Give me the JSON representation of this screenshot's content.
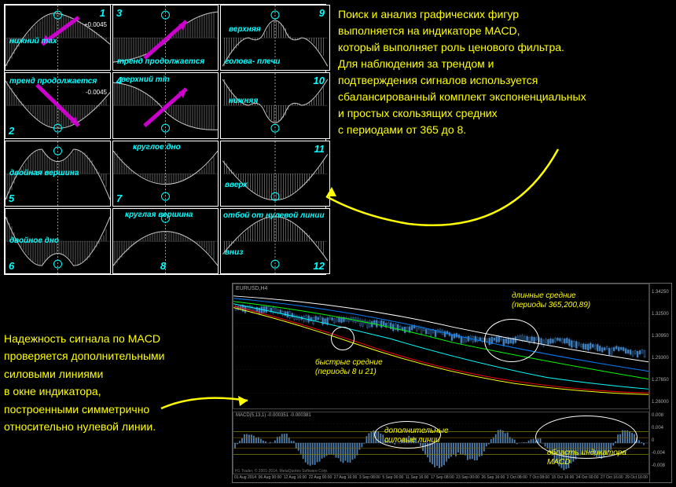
{
  "patterns": [
    {
      "id": 1,
      "num_pos": "top-right",
      "label": "нижний max",
      "label_pos": "left:5px;top:40px",
      "value": "+0.0045",
      "curve": "hill-down",
      "arrow": "down-left",
      "arrow_color": "#cc00cc"
    },
    {
      "id": 3,
      "num_pos": "top-left",
      "label": "тренд продолжается",
      "label_pos": "left:5px;bottom:5px",
      "curve": "hill-up",
      "arrow": "up-right",
      "arrow_color": "#cc00cc"
    },
    {
      "id": 9,
      "num_pos": "top-right",
      "label": "верхняя",
      "label_pos": "left:10px;top:25px",
      "label2": "голова- плечи",
      "label2_pos": "left:5px;bottom:5px",
      "curve": "head-shoulders"
    },
    {
      "id": 2,
      "num_pos": "bottom-left",
      "label": "тренд продолжается",
      "label_pos": "left:5px;top:5px",
      "value": "-0.0045",
      "curve": "valley-up",
      "arrow": "down-right",
      "arrow_color": "#cc00cc"
    },
    {
      "id": 4,
      "num_pos": "top-left",
      "label": "верхний min",
      "label_pos": "left:10px;top:3px",
      "curve": "valley-down",
      "arrow": "up-right",
      "arrow_color": "#cc00cc"
    },
    {
      "id": 10,
      "num_pos": "top-right",
      "label": "нижняя",
      "label_pos": "left:10px;top:30px",
      "curve": "inv-head-shoulders"
    },
    {
      "id": 5,
      "num_pos": "bottom-left",
      "label": "двойная вершина",
      "label_pos": "left:5px;top:35px",
      "curve": "double-top"
    },
    {
      "id": 7,
      "num_pos": "bottom-left",
      "label": "круглое дно",
      "label_pos": "left:25px;top:2px",
      "curve": "round-bottom"
    },
    {
      "id": 11,
      "num_pos": "top-right",
      "label": "вверх",
      "label_pos": "left:5px;top:50px",
      "curve": "up-bounce"
    },
    {
      "id": 6,
      "num_pos": "bottom-left",
      "label": "двойное дно",
      "label_pos": "left:5px;top:35px",
      "curve": "double-bottom"
    },
    {
      "id": 8,
      "num_pos": "bottom-center",
      "label": "круглая вершина",
      "label_pos": "left:15px;top:2px",
      "curve": "round-top"
    },
    {
      "id": 12,
      "num_pos": "bottom-right",
      "label": "вниз",
      "label_pos": "left:5px;top:50px",
      "label2": "отбой от нулевой линии",
      "label2_pos": "left:3px;top:3px",
      "curve": "down-bounce"
    }
  ],
  "desc_top_lines": [
    "Поиск и анализ графических фигур",
    "выполняется на индикаторе MACD,",
    "который выполняет роль ценового фильтра.",
    "Для наблюдения за трендом и",
    "подтверждения сигналов используется",
    "сбалансированный комплект  экспоненциальных",
    "и простых скользящих средних",
    "с периодами от 365 до 8."
  ],
  "desc_bottom_lines": [
    "Надежность сигнала по MACD",
    "проверяется дополнительными",
    "силовыми линиями",
    "в окне индикатора,",
    "построенными симметрично",
    "относительно нулевой линии."
  ],
  "chart": {
    "symbol": "EURUSD,H4",
    "price_levels": [
      "1.34250",
      "1.32500",
      "1.30950",
      "1.29300",
      "1.27650",
      "1.26000"
    ],
    "macd_label": "MACD(5,13,1) -0.000351 -0.000381",
    "macd_levels": [
      "0.008",
      "0.004",
      "0",
      "-0.004",
      "-0.008"
    ],
    "time_labels": [
      "01 Aug 2014",
      "06 Aug 00:00",
      "12 Aug 16:00",
      "22 Aug 00:00",
      "27 Aug 16:00",
      "3 Sep 08:00",
      "5 Sep 00:00",
      "11 Sep 16:00",
      "17 Sep 08:00",
      "23 Sep 00:00",
      "26 Sep 16:00",
      "2 Oct 08:00",
      "7 Oct 08:00",
      "15 Oct 16:00",
      "24 Oct 00:00",
      "27 Oct 16:00",
      "29 Oct 16:00"
    ],
    "copyright": "H1 Trader, © 2001-2014, MetaQuotes Software Corp.",
    "ma_colors": {
      "fast1": "#ffff00",
      "fast2": "#ff0000",
      "med": "#00ffff",
      "long1": "#00ff00",
      "long2": "#0080ff",
      "long3": "#ffffff"
    },
    "bar_color": "#4080c0",
    "hist_color": "#406090"
  },
  "annotations": {
    "fast_ma": {
      "text1": "быстрые средние",
      "text2": "(периоды 8 и 21)"
    },
    "long_ma": {
      "text1": "длинные средние",
      "text2": "(периоды 365,200,89)"
    },
    "extra_lines": {
      "text1": "дополнительные",
      "text2": "силовые линии"
    },
    "macd_area": {
      "text1": "область индикатора",
      "text2": "MACD"
    }
  },
  "colors": {
    "accent": "#00ffff",
    "text": "#ffff00",
    "arrow": "#ffff00",
    "marker": "#ffffff"
  }
}
